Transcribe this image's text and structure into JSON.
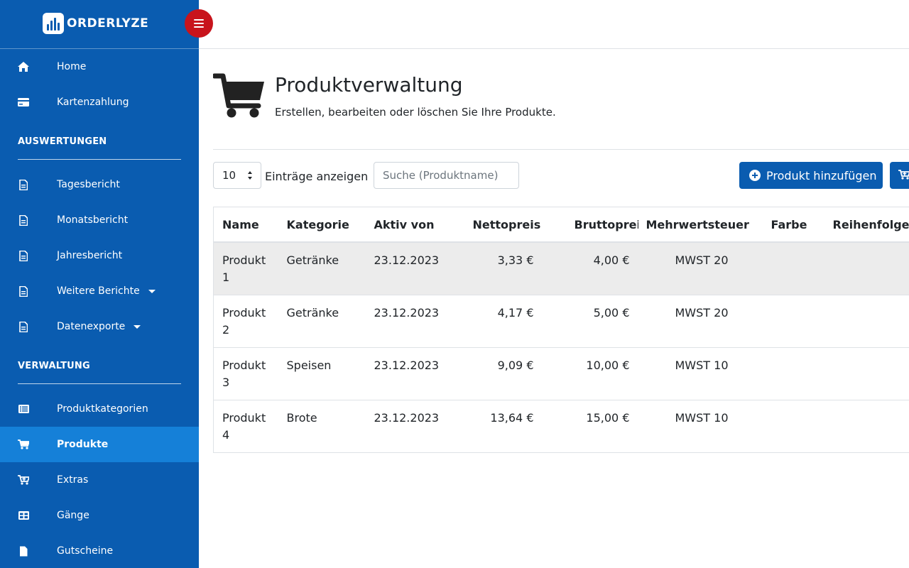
{
  "brand": {
    "name": "ORDERLYZE"
  },
  "sidebar": {
    "top_items": [
      {
        "label": "Home",
        "icon": "home-icon"
      },
      {
        "label": "Kartenzahlung",
        "icon": "credit-card-icon"
      }
    ],
    "sections": [
      {
        "title": "AUSWERTUNGEN",
        "items": [
          {
            "label": "Tagesbericht",
            "icon": "document-icon"
          },
          {
            "label": "Monatsbericht",
            "icon": "document-icon"
          },
          {
            "label": "Jahresbericht",
            "icon": "document-icon"
          },
          {
            "label": "Weitere Berichte",
            "icon": "document-icon",
            "has_dropdown": true
          },
          {
            "label": "Datenexporte",
            "icon": "document-icon",
            "has_dropdown": true
          }
        ]
      },
      {
        "title": "VERWALTUNG",
        "items": [
          {
            "label": "Produktkategorien",
            "icon": "list-icon"
          },
          {
            "label": "Produkte",
            "icon": "cart-icon",
            "active": true
          },
          {
            "label": "Extras",
            "icon": "cart-plus-icon"
          },
          {
            "label": "Gänge",
            "icon": "grid-icon"
          },
          {
            "label": "Gutscheine",
            "icon": "document-icon"
          }
        ]
      }
    ]
  },
  "page": {
    "title": "Produktverwaltung",
    "subtitle": "Erstellen, bearbeiten oder löschen Sie Ihre Produkte."
  },
  "controls": {
    "page_length": "10",
    "page_length_label": "Einträge anzeigen",
    "search_placeholder": "Suche (Produktname)",
    "add_button": "Produkt hinzufügen"
  },
  "table": {
    "columns": [
      "Name",
      "Kategorie",
      "Aktiv von",
      "Nettopreis",
      "Bruttopreis",
      "Mehrwertsteuer",
      "Farbe",
      "Reihenfolge ("
    ],
    "rows": [
      {
        "name": "Produkt 1",
        "kategorie": "Getränke",
        "aktiv_von": "23.12.2023",
        "netto": "3,33 €",
        "brutto": "4,00 €",
        "mwst": "MWST 20",
        "farbe": "",
        "reihenfolge": ""
      },
      {
        "name": "Produkt 2",
        "kategorie": "Getränke",
        "aktiv_von": "23.12.2023",
        "netto": "4,17 €",
        "brutto": "5,00 €",
        "mwst": "MWST 20",
        "farbe": "",
        "reihenfolge": ""
      },
      {
        "name": "Produkt 3",
        "kategorie": "Speisen",
        "aktiv_von": "23.12.2023",
        "netto": "9,09 €",
        "brutto": "10,00 €",
        "mwst": "MWST 10",
        "farbe": "",
        "reihenfolge": ""
      },
      {
        "name": "Produkt 4",
        "kategorie": "Brote",
        "aktiv_von": "23.12.2023",
        "netto": "13,64 €",
        "brutto": "15,00 €",
        "mwst": "MWST 10",
        "farbe": "",
        "reihenfolge": ""
      }
    ]
  },
  "colors": {
    "sidebar": "#0a5cb0",
    "sidebar_active": "#1580d8",
    "primary": "#0a5cb0",
    "toggle": "#c8141c",
    "row_stripe": "#ececec"
  }
}
